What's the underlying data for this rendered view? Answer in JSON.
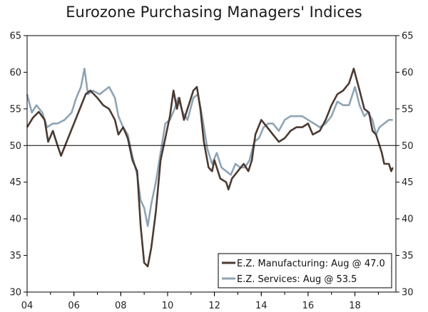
{
  "chart_data": {
    "type": "line",
    "title": "Eurozone Purchasing Managers' Indices",
    "xlabel": "",
    "ylabel": "",
    "xlim": [
      2004.0,
      2019.75
    ],
    "ylim": [
      30,
      65
    ],
    "y_ticks": [
      30,
      35,
      40,
      45,
      50,
      55,
      60,
      65
    ],
    "x_ticks": [
      {
        "value": 2004,
        "label": "04"
      },
      {
        "value": 2006,
        "label": "06"
      },
      {
        "value": 2008,
        "label": "08"
      },
      {
        "value": 2010,
        "label": "10"
      },
      {
        "value": 2012,
        "label": "12"
      },
      {
        "value": 2014,
        "label": "14"
      },
      {
        "value": 2016,
        "label": "16"
      },
      {
        "value": 2018,
        "label": "18"
      }
    ],
    "reference_line": 50,
    "grid": false,
    "legend_position": "bottom-right",
    "series": [
      {
        "name": "E.Z. Manufacturing: Aug @ 47.0",
        "color": "#4a3a32",
        "points": [
          [
            2004.0,
            52.5
          ],
          [
            2004.25,
            53.8
          ],
          [
            2004.5,
            54.6
          ],
          [
            2004.75,
            53.5
          ],
          [
            2004.9,
            50.5
          ],
          [
            2005.1,
            52.0
          ],
          [
            2005.3,
            50.0
          ],
          [
            2005.45,
            48.6
          ],
          [
            2005.75,
            51.0
          ],
          [
            2006.0,
            53.0
          ],
          [
            2006.25,
            55.0
          ],
          [
            2006.5,
            57.0
          ],
          [
            2006.7,
            57.5
          ],
          [
            2007.0,
            56.5
          ],
          [
            2007.25,
            55.5
          ],
          [
            2007.5,
            55.0
          ],
          [
            2007.75,
            53.5
          ],
          [
            2007.9,
            51.5
          ],
          [
            2008.1,
            52.5
          ],
          [
            2008.3,
            51.0
          ],
          [
            2008.5,
            48.0
          ],
          [
            2008.7,
            46.5
          ],
          [
            2008.85,
            39.0
          ],
          [
            2009.0,
            34.0
          ],
          [
            2009.15,
            33.5
          ],
          [
            2009.3,
            36.0
          ],
          [
            2009.5,
            41.0
          ],
          [
            2009.7,
            48.0
          ],
          [
            2009.9,
            51.0
          ],
          [
            2010.1,
            54.0
          ],
          [
            2010.25,
            57.5
          ],
          [
            2010.4,
            55.0
          ],
          [
            2010.5,
            56.5
          ],
          [
            2010.7,
            53.5
          ],
          [
            2010.9,
            55.5
          ],
          [
            2011.1,
            57.5
          ],
          [
            2011.25,
            58.0
          ],
          [
            2011.4,
            55.0
          ],
          [
            2011.55,
            50.5
          ],
          [
            2011.75,
            47.0
          ],
          [
            2011.9,
            46.5
          ],
          [
            2012.0,
            48.0
          ],
          [
            2012.25,
            45.5
          ],
          [
            2012.5,
            45.0
          ],
          [
            2012.6,
            44.0
          ],
          [
            2012.75,
            45.5
          ],
          [
            2013.0,
            46.5
          ],
          [
            2013.25,
            47.5
          ],
          [
            2013.45,
            46.5
          ],
          [
            2013.6,
            48.0
          ],
          [
            2013.75,
            51.5
          ],
          [
            2014.0,
            53.5
          ],
          [
            2014.25,
            52.5
          ],
          [
            2014.5,
            51.5
          ],
          [
            2014.75,
            50.5
          ],
          [
            2015.0,
            51.0
          ],
          [
            2015.25,
            52.0
          ],
          [
            2015.5,
            52.5
          ],
          [
            2015.75,
            52.5
          ],
          [
            2016.0,
            53.0
          ],
          [
            2016.2,
            51.5
          ],
          [
            2016.5,
            52.0
          ],
          [
            2016.75,
            53.5
          ],
          [
            2017.0,
            55.5
          ],
          [
            2017.25,
            57.0
          ],
          [
            2017.5,
            57.5
          ],
          [
            2017.75,
            58.5
          ],
          [
            2017.95,
            60.5
          ],
          [
            2018.2,
            57.5
          ],
          [
            2018.4,
            55.0
          ],
          [
            2018.6,
            54.5
          ],
          [
            2018.75,
            52.0
          ],
          [
            2018.9,
            51.5
          ],
          [
            2019.0,
            50.5
          ],
          [
            2019.15,
            49.0
          ],
          [
            2019.25,
            47.5
          ],
          [
            2019.45,
            47.5
          ],
          [
            2019.55,
            46.5
          ],
          [
            2019.62,
            47.0
          ]
        ]
      },
      {
        "name": "E.Z. Services: Aug @ 53.5",
        "color": "#8fa4b3",
        "points": [
          [
            2004.0,
            57.0
          ],
          [
            2004.2,
            54.5
          ],
          [
            2004.4,
            55.5
          ],
          [
            2004.65,
            54.5
          ],
          [
            2004.85,
            52.5
          ],
          [
            2005.1,
            53.0
          ],
          [
            2005.3,
            53.0
          ],
          [
            2005.6,
            53.5
          ],
          [
            2005.9,
            54.5
          ],
          [
            2006.1,
            56.5
          ],
          [
            2006.3,
            58.0
          ],
          [
            2006.45,
            60.5
          ],
          [
            2006.6,
            57.0
          ],
          [
            2006.8,
            57.5
          ],
          [
            2007.1,
            57.0
          ],
          [
            2007.3,
            57.5
          ],
          [
            2007.5,
            58.0
          ],
          [
            2007.75,
            56.5
          ],
          [
            2007.9,
            54.0
          ],
          [
            2008.1,
            52.5
          ],
          [
            2008.3,
            51.5
          ],
          [
            2008.5,
            48.5
          ],
          [
            2008.7,
            46.0
          ],
          [
            2008.85,
            42.5
          ],
          [
            2009.0,
            41.5
          ],
          [
            2009.15,
            39.0
          ],
          [
            2009.3,
            42.0
          ],
          [
            2009.5,
            45.0
          ],
          [
            2009.7,
            49.0
          ],
          [
            2009.9,
            53.0
          ],
          [
            2010.1,
            53.5
          ],
          [
            2010.3,
            55.0
          ],
          [
            2010.45,
            56.5
          ],
          [
            2010.65,
            54.5
          ],
          [
            2010.85,
            53.5
          ],
          [
            2011.1,
            56.5
          ],
          [
            2011.3,
            57.0
          ],
          [
            2011.5,
            53.5
          ],
          [
            2011.7,
            49.5
          ],
          [
            2011.9,
            47.5
          ],
          [
            2012.1,
            49.0
          ],
          [
            2012.3,
            47.0
          ],
          [
            2012.5,
            46.5
          ],
          [
            2012.7,
            46.0
          ],
          [
            2012.9,
            47.5
          ],
          [
            2013.1,
            47.0
          ],
          [
            2013.3,
            47.0
          ],
          [
            2013.5,
            48.0
          ],
          [
            2013.7,
            50.5
          ],
          [
            2013.9,
            51.0
          ],
          [
            2014.1,
            52.5
          ],
          [
            2014.3,
            53.0
          ],
          [
            2014.5,
            53.0
          ],
          [
            2014.75,
            52.0
          ],
          [
            2015.0,
            53.5
          ],
          [
            2015.25,
            54.0
          ],
          [
            2015.5,
            54.0
          ],
          [
            2015.75,
            54.0
          ],
          [
            2016.0,
            53.5
          ],
          [
            2016.25,
            53.0
          ],
          [
            2016.5,
            52.5
          ],
          [
            2016.75,
            53.0
          ],
          [
            2017.0,
            54.0
          ],
          [
            2017.25,
            56.0
          ],
          [
            2017.5,
            55.5
          ],
          [
            2017.75,
            55.5
          ],
          [
            2018.0,
            58.0
          ],
          [
            2018.2,
            55.5
          ],
          [
            2018.4,
            54.0
          ],
          [
            2018.55,
            54.5
          ],
          [
            2018.75,
            53.5
          ],
          [
            2018.9,
            51.5
          ],
          [
            2019.05,
            52.5
          ],
          [
            2019.25,
            53.0
          ],
          [
            2019.45,
            53.5
          ],
          [
            2019.55,
            53.5
          ],
          [
            2019.62,
            53.5
          ]
        ]
      }
    ]
  }
}
